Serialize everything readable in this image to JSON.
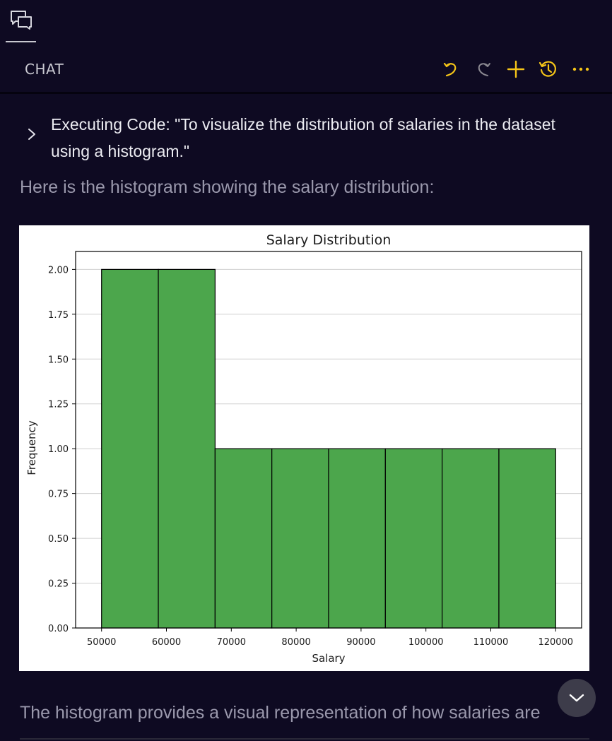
{
  "header": {
    "title": "CHAT",
    "accent_color": "#f5c518"
  },
  "icons": {
    "top": "chat-view-icon",
    "undo": "undo-icon",
    "redo": "redo-icon",
    "new": "plus-icon",
    "history": "history-icon",
    "more": "more-icon",
    "expand": "chevron-right-icon",
    "scroll": "chevron-down-icon"
  },
  "messages": {
    "executing": "Executing Code: \"To visualize the distribution of salaries in the dataset using a histogram.\"",
    "intro": "Here is the histogram showing the salary distribution:",
    "summary": "The histogram provides a visual representation of how salaries are"
  },
  "chart_data": {
    "type": "bar",
    "subtype": "histogram",
    "title": "Salary Distribution",
    "xlabel": "Salary",
    "ylabel": "Frequency",
    "bin_edges": [
      50000,
      58750,
      67500,
      76250,
      85000,
      93750,
      102500,
      111250,
      120000
    ],
    "values": [
      2,
      2,
      1,
      1,
      1,
      1,
      1,
      1
    ],
    "xlim": [
      46000,
      124000
    ],
    "ylim": [
      0,
      2.1
    ],
    "xticks": [
      "50000",
      "60000",
      "70000",
      "80000",
      "90000",
      "100000",
      "110000",
      "120000"
    ],
    "yticks": [
      "0.00",
      "0.25",
      "0.50",
      "0.75",
      "1.00",
      "1.25",
      "1.50",
      "1.75",
      "2.00"
    ],
    "grid": "y",
    "bar_color": "#4ca64c",
    "edge_color": "#000000"
  }
}
